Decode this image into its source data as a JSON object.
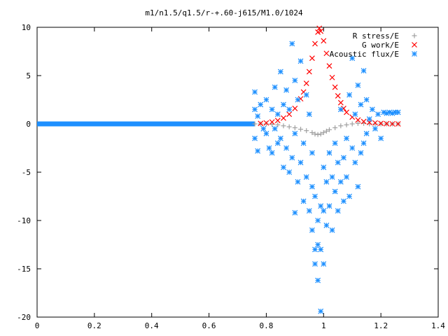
{
  "chart_data": {
    "type": "scatter",
    "title": "m1/n1.5/q1.5/r-+.60-j615/M1.0/1024",
    "xlabel": "",
    "ylabel": "",
    "xlim": [
      0,
      1.4
    ],
    "ylim": [
      -20,
      10
    ],
    "x_ticks": [
      "0",
      "0.2",
      "0.4",
      "0.6",
      "0.8",
      "1",
      "1.2",
      "1.4"
    ],
    "y_ticks": [
      "10",
      "5",
      "0",
      "-5",
      "-10",
      "-15",
      "-20"
    ],
    "grid": false,
    "legend_position": "top-right",
    "series": [
      {
        "name": "R stress/E",
        "marker": "+",
        "color": "#a0a0a0",
        "points": [
          [
            0.76,
            0.0
          ],
          [
            0.78,
            0.0
          ],
          [
            0.8,
            0.0
          ],
          [
            0.82,
            -0.05
          ],
          [
            0.84,
            -0.1
          ],
          [
            0.86,
            -0.2
          ],
          [
            0.88,
            -0.3
          ],
          [
            0.9,
            -0.4
          ],
          [
            0.92,
            -0.55
          ],
          [
            0.94,
            -0.7
          ],
          [
            0.96,
            -0.9
          ],
          [
            0.97,
            -1.05
          ],
          [
            0.98,
            -1.1
          ],
          [
            0.99,
            -1.05
          ],
          [
            1.0,
            -0.9
          ],
          [
            1.01,
            -0.75
          ],
          [
            1.02,
            -0.6
          ],
          [
            1.04,
            -0.4
          ],
          [
            1.06,
            -0.2
          ],
          [
            1.08,
            -0.1
          ],
          [
            1.1,
            0.0
          ],
          [
            1.12,
            0.05
          ],
          [
            1.14,
            0.05
          ],
          [
            1.16,
            0.0
          ],
          [
            1.18,
            0.0
          ],
          [
            1.2,
            0.0
          ],
          [
            1.22,
            0.0
          ],
          [
            1.24,
            0.0
          ],
          [
            1.26,
            0.0
          ]
        ]
      },
      {
        "name": "G work/E",
        "marker": "x",
        "color": "#ff0000",
        "points": [
          [
            0.78,
            0.05
          ],
          [
            0.8,
            0.1
          ],
          [
            0.82,
            0.2
          ],
          [
            0.84,
            0.35
          ],
          [
            0.86,
            0.6
          ],
          [
            0.88,
            1.0
          ],
          [
            0.9,
            1.6
          ],
          [
            0.92,
            2.6
          ],
          [
            0.93,
            3.3
          ],
          [
            0.94,
            4.2
          ],
          [
            0.95,
            5.4
          ],
          [
            0.96,
            6.8
          ],
          [
            0.97,
            8.3
          ],
          [
            0.98,
            9.5
          ],
          [
            0.985,
            9.9
          ],
          [
            0.99,
            9.6
          ],
          [
            1.0,
            8.6
          ],
          [
            1.01,
            7.3
          ],
          [
            1.02,
            6.0
          ],
          [
            1.03,
            4.8
          ],
          [
            1.04,
            3.8
          ],
          [
            1.05,
            2.9
          ],
          [
            1.06,
            2.2
          ],
          [
            1.07,
            1.6
          ],
          [
            1.08,
            1.2
          ],
          [
            1.1,
            0.7
          ],
          [
            1.12,
            0.4
          ],
          [
            1.14,
            0.25
          ],
          [
            1.16,
            0.15
          ],
          [
            1.18,
            0.1
          ],
          [
            1.2,
            0.05
          ],
          [
            1.22,
            0.02
          ],
          [
            1.24,
            0.0
          ],
          [
            1.26,
            0.0
          ]
        ]
      },
      {
        "name": "Acoustic flux/E",
        "marker": "*",
        "color": "#1e90ff",
        "points": [
          [
            0.76,
            3.3
          ],
          [
            0.76,
            1.5
          ],
          [
            0.76,
            -1.5
          ],
          [
            0.77,
            -2.8
          ],
          [
            0.77,
            0.8
          ],
          [
            0.78,
            2.0
          ],
          [
            0.79,
            -0.5
          ],
          [
            0.8,
            2.5
          ],
          [
            0.8,
            -1.0
          ],
          [
            0.81,
            -2.5
          ],
          [
            0.82,
            1.5
          ],
          [
            0.82,
            -3.0
          ],
          [
            0.83,
            3.8
          ],
          [
            0.83,
            -0.5
          ],
          [
            0.84,
            -2.0
          ],
          [
            0.84,
            1.0
          ],
          [
            0.85,
            5.4
          ],
          [
            0.85,
            -1.5
          ],
          [
            0.86,
            2.0
          ],
          [
            0.86,
            -4.5
          ],
          [
            0.87,
            3.5
          ],
          [
            0.87,
            -2.5
          ],
          [
            0.88,
            1.5
          ],
          [
            0.88,
            -5.0
          ],
          [
            0.89,
            8.3
          ],
          [
            0.89,
            -3.5
          ],
          [
            0.9,
            -9.2
          ],
          [
            0.9,
            4.5
          ],
          [
            0.9,
            -1.0
          ],
          [
            0.91,
            -6.0
          ],
          [
            0.91,
            2.5
          ],
          [
            0.92,
            -4.0
          ],
          [
            0.92,
            6.5
          ],
          [
            0.93,
            -2.0
          ],
          [
            0.93,
            -8.0
          ],
          [
            0.94,
            3.0
          ],
          [
            0.94,
            -5.5
          ],
          [
            0.95,
            -9.0
          ],
          [
            0.95,
            1.0
          ],
          [
            0.96,
            -11.0
          ],
          [
            0.96,
            -6.5
          ],
          [
            0.96,
            -3.0
          ],
          [
            0.97,
            -13.0
          ],
          [
            0.97,
            -7.5
          ],
          [
            0.97,
            -14.5
          ],
          [
            0.98,
            -16.2
          ],
          [
            0.98,
            -10.0
          ],
          [
            0.98,
            -12.5
          ],
          [
            0.99,
            -19.4
          ],
          [
            0.99,
            -13.0
          ],
          [
            0.99,
            -8.5
          ],
          [
            1.0,
            -14.5
          ],
          [
            1.0,
            -9.0
          ],
          [
            1.0,
            -4.5
          ],
          [
            1.01,
            -10.5
          ],
          [
            1.01,
            -6.0
          ],
          [
            1.02,
            -8.5
          ],
          [
            1.02,
            -3.0
          ],
          [
            1.03,
            -5.5
          ],
          [
            1.03,
            -11.0
          ],
          [
            1.04,
            -7.0
          ],
          [
            1.04,
            -2.0
          ],
          [
            1.05,
            -9.0
          ],
          [
            1.05,
            -4.0
          ],
          [
            1.06,
            -6.0
          ],
          [
            1.06,
            1.5
          ],
          [
            1.07,
            -8.0
          ],
          [
            1.07,
            -3.5
          ],
          [
            1.08,
            -1.5
          ],
          [
            1.08,
            -5.5
          ],
          [
            1.09,
            -7.5
          ],
          [
            1.09,
            3.0
          ],
          [
            1.1,
            -2.5
          ],
          [
            1.1,
            6.8
          ],
          [
            1.11,
            -4.0
          ],
          [
            1.11,
            1.0
          ],
          [
            1.12,
            -6.5
          ],
          [
            1.12,
            4.0
          ],
          [
            1.13,
            -3.0
          ],
          [
            1.13,
            2.0
          ],
          [
            1.14,
            -2.0
          ],
          [
            1.14,
            5.5
          ],
          [
            1.15,
            -1.0
          ],
          [
            1.15,
            2.5
          ],
          [
            1.16,
            0.5
          ],
          [
            1.17,
            1.5
          ],
          [
            1.18,
            -0.5
          ],
          [
            1.19,
            1.0
          ],
          [
            1.2,
            -1.5
          ],
          [
            1.21,
            1.2
          ],
          [
            1.22,
            1.1
          ],
          [
            1.23,
            1.2
          ],
          [
            1.24,
            1.1
          ],
          [
            1.25,
            1.2
          ],
          [
            1.26,
            1.2
          ]
        ]
      }
    ]
  }
}
